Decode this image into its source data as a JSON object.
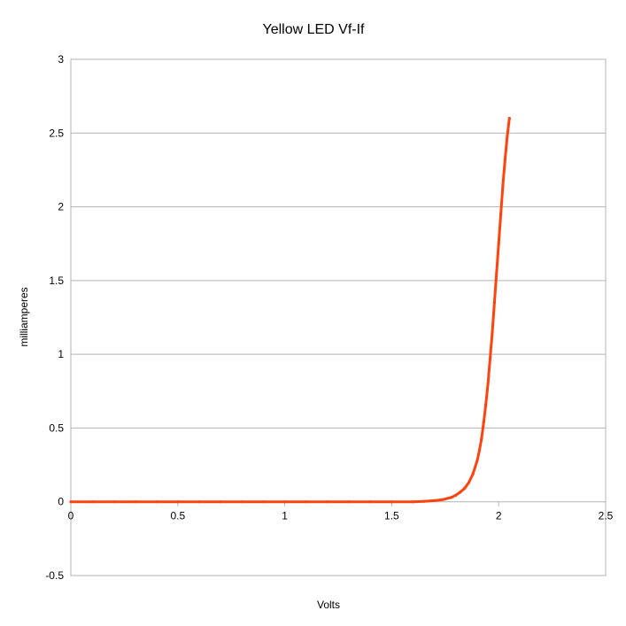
{
  "chart_data": {
    "type": "scatter",
    "title": "Yellow LED Vf-If",
    "xlabel": "Volts",
    "ylabel": "milliamperes",
    "xlim": [
      0,
      2.5
    ],
    "ylim": [
      -0.5,
      3
    ],
    "xticks": [
      "0",
      "0.5",
      "1",
      "1.5",
      "2",
      "2.5"
    ],
    "yticks": [
      "3",
      "2.5",
      "2",
      "1.5",
      "1",
      "0.5",
      "0",
      "-0.5"
    ],
    "grid": true,
    "legend": "none",
    "series": [
      {
        "color": "#ff420e",
        "x": [
          0,
          0.1,
          0.2,
          0.3,
          0.4,
          0.5,
          0.6,
          0.7,
          0.8,
          0.9,
          1.0,
          1.1,
          1.2,
          1.3,
          1.4,
          1.5,
          1.6,
          1.65,
          1.7,
          1.74,
          1.78,
          1.8,
          1.82,
          1.84,
          1.86,
          1.88,
          1.9,
          1.91,
          1.92,
          1.93,
          1.94,
          1.95,
          1.96,
          1.97,
          1.98,
          1.99,
          2.0,
          2.01,
          2.02,
          2.03,
          2.04,
          2.05
        ],
        "y": [
          0,
          0,
          0,
          0,
          0,
          0,
          0,
          0,
          0,
          0,
          0,
          0,
          0,
          0,
          0,
          0,
          0,
          0.003,
          0.008,
          0.015,
          0.03,
          0.045,
          0.065,
          0.09,
          0.13,
          0.19,
          0.28,
          0.35,
          0.43,
          0.54,
          0.66,
          0.8,
          0.97,
          1.15,
          1.35,
          1.55,
          1.75,
          1.95,
          2.15,
          2.32,
          2.48,
          2.6
        ]
      }
    ]
  }
}
